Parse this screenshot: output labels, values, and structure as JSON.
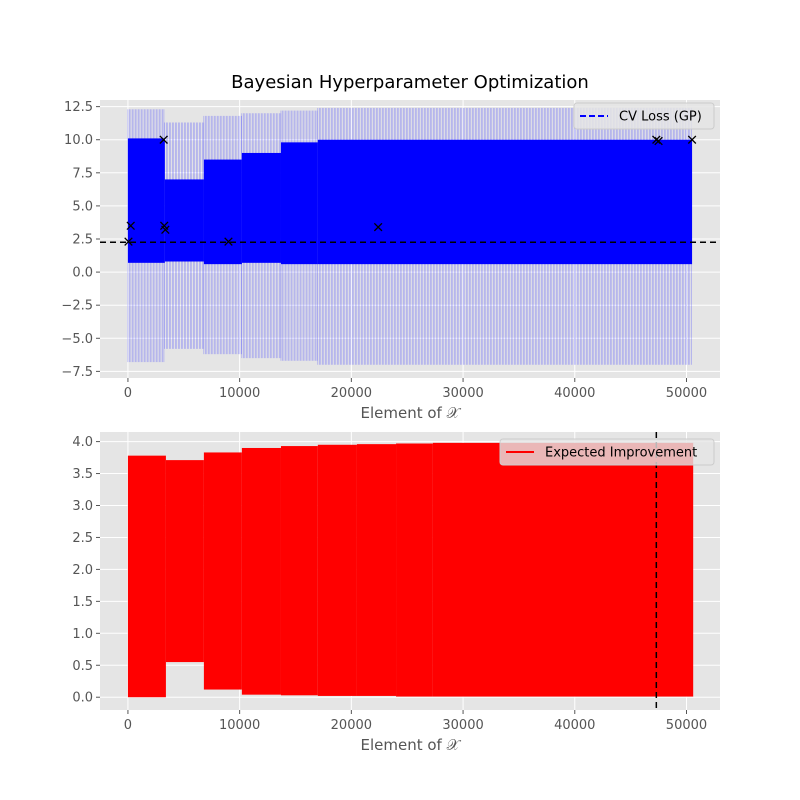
{
  "chart_data": [
    {
      "type": "line",
      "title": "Bayesian Hyperparameter Optimization",
      "xlabel": "Element of 𝒳",
      "ylabel": "",
      "xlim": [
        -2500,
        53000
      ],
      "ylim": [
        -8.0,
        13.0
      ],
      "x_ticks": [
        0,
        10000,
        20000,
        30000,
        40000,
        50000
      ],
      "x_tick_labels": [
        "0",
        "10000",
        "20000",
        "30000",
        "40000",
        "50000"
      ],
      "y_ticks": [
        -7.5,
        -5.0,
        -2.5,
        0.0,
        2.5,
        5.0,
        7.5,
        10.0,
        12.5
      ],
      "y_tick_labels": [
        "−7.5",
        "−5.0",
        "−2.5",
        "0.0",
        "2.5",
        "5.0",
        "7.5",
        "10.0",
        "12.5"
      ],
      "grid": true,
      "legend": "top-right",
      "series": [
        {
          "name": "CV Loss (GP)",
          "color": "#0000ff",
          "style": "dashed",
          "x_max": 50500,
          "mean_band_segments": [
            {
              "x": [
                0,
                3300
              ],
              "low": 0.7,
              "high": 10.1
            },
            {
              "x": [
                3300,
                6800
              ],
              "low": 0.8,
              "high": 7.0
            },
            {
              "x": [
                6800,
                10200
              ],
              "low": 0.6,
              "high": 8.5
            },
            {
              "x": [
                10200,
                13700
              ],
              "low": 0.7,
              "high": 9.0
            },
            {
              "x": [
                13700,
                17000
              ],
              "low": 0.6,
              "high": 9.8
            },
            {
              "x": [
                17000,
                50500
              ],
              "low": 0.6,
              "high": 10.0
            }
          ],
          "confidence_band_segments": [
            {
              "x": [
                0,
                3300
              ],
              "low": -6.8,
              "high": 12.3
            },
            {
              "x": [
                3300,
                6800
              ],
              "low": -5.8,
              "high": 11.3
            },
            {
              "x": [
                6800,
                10200
              ],
              "low": -6.2,
              "high": 11.8
            },
            {
              "x": [
                10200,
                13700
              ],
              "low": -6.5,
              "high": 12.0
            },
            {
              "x": [
                13700,
                17000
              ],
              "low": -6.7,
              "high": 12.2
            },
            {
              "x": [
                17000,
                50500
              ],
              "low": -7.0,
              "high": 12.4
            }
          ]
        }
      ],
      "observations": {
        "marker": "x",
        "color": "#000000",
        "points": [
          {
            "x": 50,
            "y": 2.3
          },
          {
            "x": 250,
            "y": 3.5
          },
          {
            "x": 3200,
            "y": 10.0
          },
          {
            "x": 3250,
            "y": 3.5
          },
          {
            "x": 3350,
            "y": 3.2
          },
          {
            "x": 9000,
            "y": 2.3
          },
          {
            "x": 22400,
            "y": 3.4
          },
          {
            "x": 47300,
            "y": 10.0
          },
          {
            "x": 47500,
            "y": 9.9
          },
          {
            "x": 50500,
            "y": 10.0
          }
        ]
      },
      "hline": {
        "y": 2.25,
        "color": "#000000",
        "style": "dashed"
      }
    },
    {
      "type": "area",
      "title": "",
      "xlabel": "Element of 𝒳",
      "ylabel": "",
      "xlim": [
        -2500,
        53000
      ],
      "ylim": [
        -0.2,
        4.15
      ],
      "x_ticks": [
        0,
        10000,
        20000,
        30000,
        40000,
        50000
      ],
      "x_tick_labels": [
        "0",
        "10000",
        "20000",
        "30000",
        "40000",
        "50000"
      ],
      "y_ticks": [
        0.0,
        0.5,
        1.0,
        1.5,
        2.0,
        2.5,
        3.0,
        3.5,
        4.0
      ],
      "y_tick_labels": [
        "0.0",
        "0.5",
        "1.0",
        "1.5",
        "2.0",
        "2.5",
        "3.0",
        "3.5",
        "4.0"
      ],
      "grid": true,
      "legend": "top-right",
      "series": [
        {
          "name": "Expected Improvement",
          "color": "#ff0000",
          "style": "solid",
          "segments": [
            {
              "x": [
                0,
                3400
              ],
              "low": 0.0,
              "high": 3.78
            },
            {
              "x": [
                3400,
                6800
              ],
              "low": 0.55,
              "high": 3.71
            },
            {
              "x": [
                6800,
                10200
              ],
              "low": 0.12,
              "high": 3.83
            },
            {
              "x": [
                10200,
                13700
              ],
              "low": 0.04,
              "high": 3.9
            },
            {
              "x": [
                13700,
                17000
              ],
              "low": 0.03,
              "high": 3.93
            },
            {
              "x": [
                17000,
                20500
              ],
              "low": 0.02,
              "high": 3.95
            },
            {
              "x": [
                20500,
                24000
              ],
              "low": 0.02,
              "high": 3.96
            },
            {
              "x": [
                24000,
                27300
              ],
              "low": 0.01,
              "high": 3.97
            },
            {
              "x": [
                27300,
                50600
              ],
              "low": 0.01,
              "high": 3.98
            }
          ]
        }
      ],
      "vline": {
        "x": 47300,
        "color": "#000000",
        "style": "dashed"
      }
    }
  ]
}
